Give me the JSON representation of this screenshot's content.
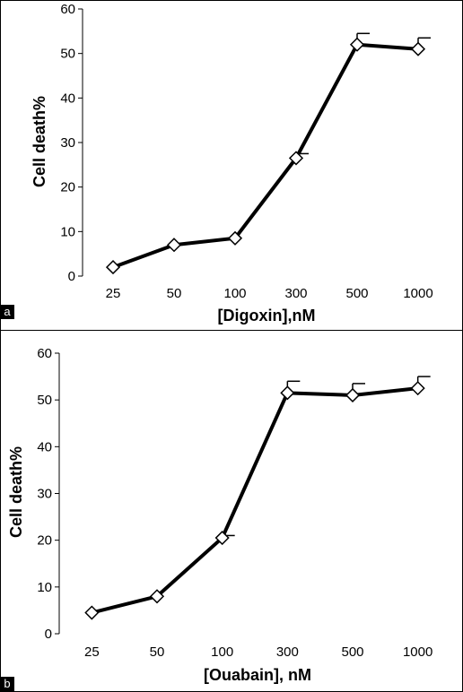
{
  "chart_data": [
    {
      "type": "line",
      "panel_label": "a",
      "title": "",
      "xlabel": "[Digoxin],nM",
      "ylabel": "Cell death%",
      "categories": [
        "25",
        "50",
        "100",
        "300",
        "500",
        "1000"
      ],
      "series": [
        {
          "values": [
            2,
            7,
            8.5,
            26.5,
            52,
            51
          ],
          "error_plus": [
            0,
            0,
            0,
            1,
            2.5,
            2.5
          ],
          "marker": "diamond",
          "color": "#000000"
        }
      ],
      "ylim": [
        0,
        60
      ],
      "yticks": [
        0,
        10,
        20,
        30,
        40,
        50,
        60
      ],
      "grid": false,
      "legend": "none"
    },
    {
      "type": "line",
      "panel_label": "b",
      "title": "",
      "xlabel": "[Ouabain], nM",
      "ylabel": "Cell death%",
      "categories": [
        "25",
        "50",
        "100",
        "300",
        "500",
        "1000"
      ],
      "series": [
        {
          "values": [
            4.5,
            8,
            20.5,
            51.5,
            51,
            52.5
          ],
          "error_plus": [
            0,
            0,
            0.5,
            2.5,
            2.5,
            2.5
          ],
          "marker": "diamond",
          "color": "#000000"
        }
      ],
      "ylim": [
        0,
        60
      ],
      "yticks": [
        0,
        10,
        20,
        30,
        40,
        50,
        60
      ],
      "grid": false,
      "legend": "none"
    }
  ]
}
